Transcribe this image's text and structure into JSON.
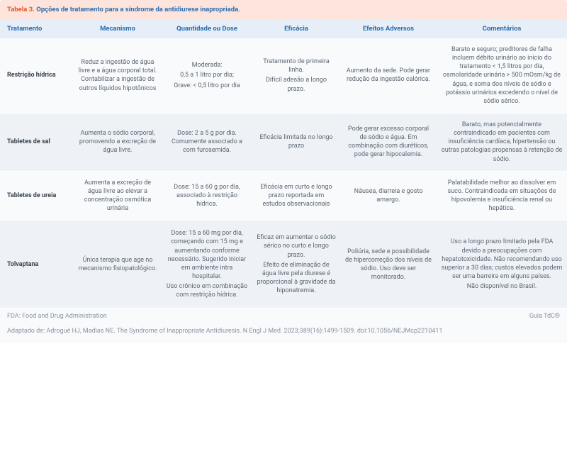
{
  "title": {
    "label": "Tabela 3.",
    "text": "Opções de tratamento para a síndrome da antidiurese inapropriada."
  },
  "columns": [
    "Tratamento",
    "Mecanismo",
    "Quantidade ou Dose",
    "Eficácia",
    "Efeitos Adversos",
    "Comentários"
  ],
  "rows": [
    {
      "treatment": "Restrição hídrica",
      "mechanism": "Reduz a ingestão de água livre e a água corporal total. Contabilizar a ingestão de outros líquidos hipotônicos",
      "dose_lines": [
        "Moderada:",
        "0,5 a 1 litro por dia;",
        "",
        "Grave: < 0,5 litro por dia"
      ],
      "efficacy_lines": [
        "Tratamento de primeira linha.",
        "Difícil adesão a longo prazo."
      ],
      "adverse": "Aumento da sede. Pode gerar redução da ingestão calórica.",
      "comments": "Barato e seguro; preditores de falha incluem débito urinário ao início do tratamento < 1,5 litros por dia, osmolaridade urinária > 500 mOsm/kg de água, e soma dos níveis de sódio e potássio urinários excedendo o nível de sódio sérico."
    },
    {
      "treatment": "Tabletes de sal",
      "mechanism": "Aumenta o sódio corporal, promovendo a excreção de água livre.",
      "dose": "Dose: 2 a 5 g por dia. Comumente associado a com furosemida.",
      "efficacy": "Eficácia limitada no longo prazo",
      "adverse": "Pode gerar excesso corporal de sódio e água. Em combinação com diuréticos, pode gerar hipocalemia.",
      "comments": "Barato, mas potencialmente contraindicado em pacientes com insuficiência cardíaca, hipertensão ou outras patologias propensas à retenção de sódio."
    },
    {
      "treatment": "Tabletes de ureia",
      "mechanism": "Aumenta a excreção de água livre ao elevar a concentração osmótica urinária",
      "dose": "Dose: 15 a 60 g por dia, associado à restrição hídrica.",
      "efficacy": "Eficácia em curto e longo prazo reportada em estudos observacionais",
      "adverse": "Náusea, diarreia e gosto amargo.",
      "comments": "Palatabilidade melhor ao dissolver em suco. Contraindicada em situações de hipovolemia e insuficiência renal ou hepática."
    },
    {
      "treatment": "Tolvaptana",
      "mechanism": "Única terapia que age no mecanismo fisiopatológico.",
      "dose_lines": [
        "Dose: 15 a 60 mg por dia, começando com 15 mg e aumentando conforme necessário. Sugerido iniciar em ambiente intra hospitalar.",
        "Uso crônico em combinação com restrição hídrica."
      ],
      "efficacy_lines": [
        "Eficaz em aumentar o sódio sérico no curto e longo prazo.",
        "Efeito de eliminação de água livre pela diurese é proporcional à gravidade da hiponatremia."
      ],
      "adverse": "Poliúria, sede e possibilidade de hipercorreção dos níveis de sódio. Uso deve ser monitorado.",
      "comments_lines": [
        "Uso a longo prazo limitado pela FDA devido a preocupações com hepatotoxicidade. Não recomendando uso superior a 30 dias; custos elevados podem ser uma barreira em alguns países.",
        "Não disponível no Brasil."
      ]
    }
  ],
  "footer": {
    "left": "FDA: Food and Drug Administration",
    "right": "Guia TdC®"
  },
  "citation": "Adaptado de: Adrogué HJ, Madias NE. The Syndrome of Inappropriate Antidiuresis. N Engl J Med. 2023;389(16):1499-1509. doi:10.1056/NEJMcp2210411",
  "colors": {
    "title_bg": "#fde5dd",
    "title_label": "#e55a2b",
    "title_text": "#2b6cb0",
    "header_bg": "#e6eef7",
    "header_text": "#2b6cb0",
    "row_bg": "#f8fafc",
    "row_alt_bg": "#eef2f6",
    "body_text": "#5a6572",
    "rowhead_text": "#3a4350",
    "footer_text": "#8a94a0"
  }
}
